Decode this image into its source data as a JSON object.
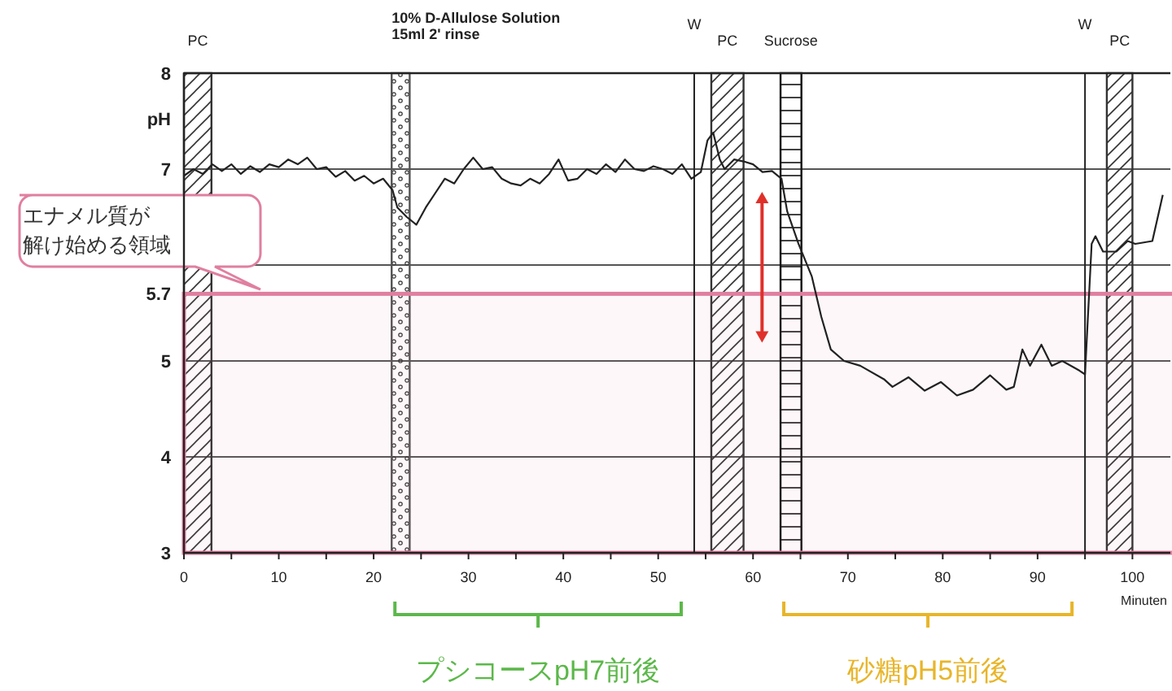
{
  "chart_data": {
    "type": "line",
    "xlabel": "Minuten",
    "ylabel": "pH",
    "xlim": [
      0,
      104
    ],
    "ylim": [
      3,
      8
    ],
    "xticks": [
      0,
      {
        "value": 5,
        "label": null
      },
      10,
      {
        "value": 15,
        "label": null
      },
      20,
      {
        "value": 25,
        "label": null
      },
      30,
      {
        "value": 35,
        "label": null
      },
      40,
      {
        "value": 45,
        "label": null
      },
      50,
      {
        "value": 55,
        "label": null
      },
      60,
      {
        "value": 65,
        "label": null
      },
      70,
      {
        "value": 75,
        "label": null
      },
      80,
      {
        "value": 85,
        "label": null
      },
      90,
      {
        "value": 95,
        "label": null
      },
      100
    ],
    "yticks": [
      3,
      4,
      5,
      5.7,
      {
        "value": 6,
        "label": null
      },
      7,
      8
    ],
    "grid": "y",
    "marker": "none",
    "line_style": "solid",
    "series": [
      {
        "color": "#222222",
        "x": [
          0,
          1,
          2,
          3,
          4,
          5,
          6,
          7,
          8,
          9,
          10,
          11,
          12,
          13,
          14,
          15,
          16,
          17,
          18,
          19,
          20,
          21,
          22,
          22.5,
          23.5,
          24.5,
          25.5,
          26.5,
          27.5,
          28.5,
          29.5,
          30.5,
          31.5,
          32.5,
          33.5,
          34.5,
          35.5,
          36.5,
          37.5,
          38.5,
          39.5,
          40.5,
          41.5,
          42.5,
          43.5,
          44.5,
          45.5,
          46.5,
          47.5,
          48.5,
          49.5,
          50.5,
          51.5,
          52.5,
          53.5,
          54.5,
          55.2,
          55.8,
          56.5,
          57,
          58,
          59,
          60,
          61,
          62,
          63,
          63.6,
          64.8,
          66.2,
          67.2,
          68.2,
          69.6,
          71.3,
          73.8,
          74.7,
          76.4,
          78.1,
          79.8,
          81.5,
          83.2,
          85.0,
          86.7,
          87.5,
          88.4,
          89.2,
          90.4,
          91.5,
          92.6,
          94.4,
          95.0,
          95.7,
          96.1,
          96.9,
          98.3,
          99.5,
          100.3,
          102.1,
          103.2
        ],
        "values": [
          6.93,
          7.0,
          6.95,
          7.05,
          6.98,
          7.05,
          6.95,
          7.03,
          6.97,
          7.05,
          7.02,
          7.1,
          7.05,
          7.12,
          7.0,
          7.02,
          6.92,
          6.98,
          6.88,
          6.93,
          6.85,
          6.9,
          6.78,
          6.6,
          6.5,
          6.42,
          6.6,
          6.75,
          6.9,
          6.85,
          7.0,
          7.12,
          7.0,
          7.02,
          6.9,
          6.85,
          6.83,
          6.9,
          6.85,
          6.95,
          7.1,
          6.88,
          6.9,
          7.0,
          6.95,
          7.05,
          6.97,
          7.1,
          7.0,
          6.98,
          7.03,
          7.0,
          6.95,
          7.05,
          6.9,
          6.97,
          7.3,
          7.38,
          7.1,
          7.0,
          7.1,
          7.08,
          7.05,
          6.97,
          6.98,
          6.9,
          6.56,
          6.22,
          5.88,
          5.46,
          5.12,
          5.0,
          4.95,
          4.81,
          4.73,
          4.83,
          4.69,
          4.78,
          4.64,
          4.7,
          4.85,
          4.7,
          4.73,
          5.12,
          4.95,
          5.17,
          4.95,
          5.0,
          4.9,
          4.86,
          6.22,
          6.3,
          6.14,
          6.14,
          6.25,
          6.22,
          6.25,
          6.73
        ]
      }
    ],
    "bands": [
      {
        "axis": "x",
        "from": 0,
        "to": 2.9,
        "label": "PC",
        "color": "#333333"
      },
      {
        "axis": "x",
        "from": 21.9,
        "to": 23.8,
        "label": "10% D-Allulose Solution\n15ml 2' rinse",
        "color": "#555555"
      },
      {
        "axis": "x",
        "from": 55.6,
        "to": 59.0,
        "label": "PC",
        "color": "#333333"
      },
      {
        "axis": "x",
        "from": 62.9,
        "to": 65.1,
        "label": "Sucrose",
        "color": "#111111"
      },
      {
        "axis": "x",
        "from": 97.3,
        "to": 100,
        "label": "PC",
        "color": "#333333"
      },
      {
        "axis": "y",
        "from": 3,
        "to": 5.7,
        "label": "エナメル質が解け始める領域",
        "color": "#e07fa0"
      }
    ],
    "ref_lines": [
      {
        "axis": "x",
        "value": 53.8,
        "label": "W",
        "color": "#222222"
      },
      {
        "axis": "x",
        "value": 95.0,
        "label": "W",
        "color": "#222222"
      }
    ],
    "annotations": [
      "プシコースpH7前後",
      "砂糖pH5前後"
    ]
  }
}
